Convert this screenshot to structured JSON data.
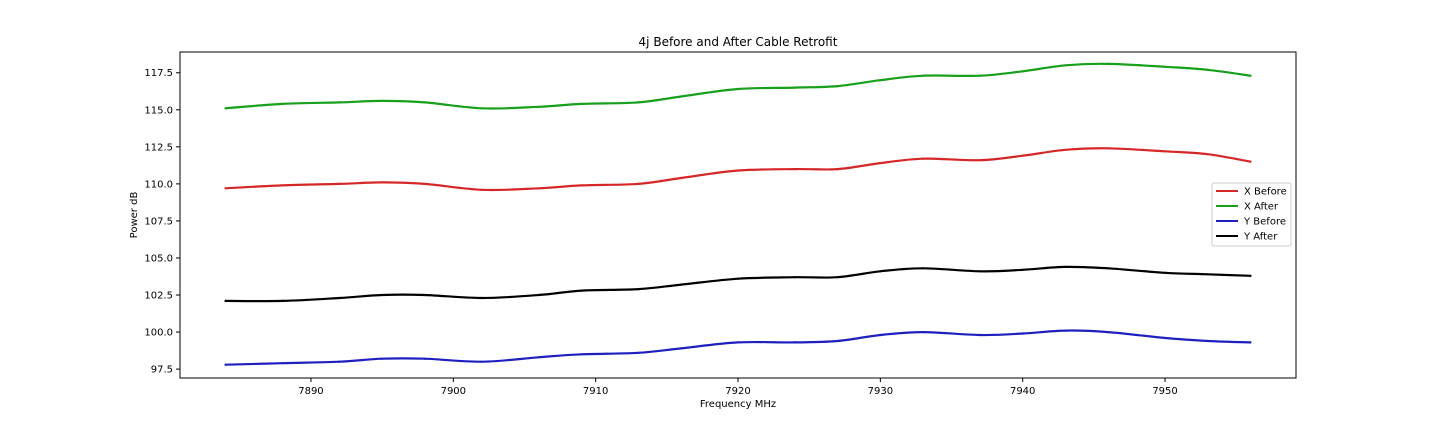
{
  "chart_data": {
    "type": "line",
    "title": "4j Before and After Cable Retrofit",
    "xlabel": "Frequency MHz",
    "ylabel": "Power dB",
    "xlim": [
      7880.8,
      7959.2
    ],
    "ylim": [
      96.9,
      118.9
    ],
    "x_ticks": [
      7890,
      7900,
      7910,
      7920,
      7930,
      7940,
      7950
    ],
    "y_ticks": [
      97.5,
      100.0,
      102.5,
      105.0,
      107.5,
      110.0,
      112.5,
      115.0,
      117.5
    ],
    "grid": false,
    "legend_position": "center-right",
    "x": [
      7884,
      7888,
      7892,
      7895,
      7898,
      7902,
      7906,
      7909,
      7913,
      7916,
      7920,
      7924,
      7927,
      7930,
      7933,
      7937,
      7940,
      7943,
      7946,
      7950,
      7953,
      7956
    ],
    "series": [
      {
        "name": "X Before",
        "color": "#d62728",
        "values": [
          109.7,
          109.9,
          110.0,
          110.1,
          110.0,
          109.6,
          109.7,
          109.9,
          110.0,
          110.4,
          110.9,
          111.0,
          111.0,
          111.4,
          111.7,
          111.6,
          111.9,
          112.3,
          112.4,
          112.2,
          112.0,
          111.5
        ]
      },
      {
        "name": "X After",
        "color": "#17a01b",
        "values": [
          115.1,
          115.4,
          115.5,
          115.6,
          115.5,
          115.1,
          115.2,
          115.4,
          115.5,
          115.9,
          116.4,
          116.5,
          116.6,
          117.0,
          117.3,
          117.3,
          117.6,
          118.0,
          118.1,
          117.9,
          117.7,
          117.3
        ]
      },
      {
        "name": "Y Before",
        "color": "#1f1fbf",
        "values": [
          97.8,
          97.9,
          98.0,
          98.2,
          98.2,
          98.0,
          98.3,
          98.5,
          98.6,
          98.9,
          99.3,
          99.3,
          99.4,
          99.8,
          100.0,
          99.8,
          99.9,
          100.1,
          100.0,
          99.6,
          99.4,
          99.3
        ]
      },
      {
        "name": "Y After",
        "color": "#000000",
        "values": [
          102.1,
          102.1,
          102.3,
          102.5,
          102.5,
          102.3,
          102.5,
          102.8,
          102.9,
          103.2,
          103.6,
          103.7,
          103.7,
          104.1,
          104.3,
          104.1,
          104.2,
          104.4,
          104.3,
          104.0,
          103.9,
          103.8
        ]
      }
    ]
  }
}
